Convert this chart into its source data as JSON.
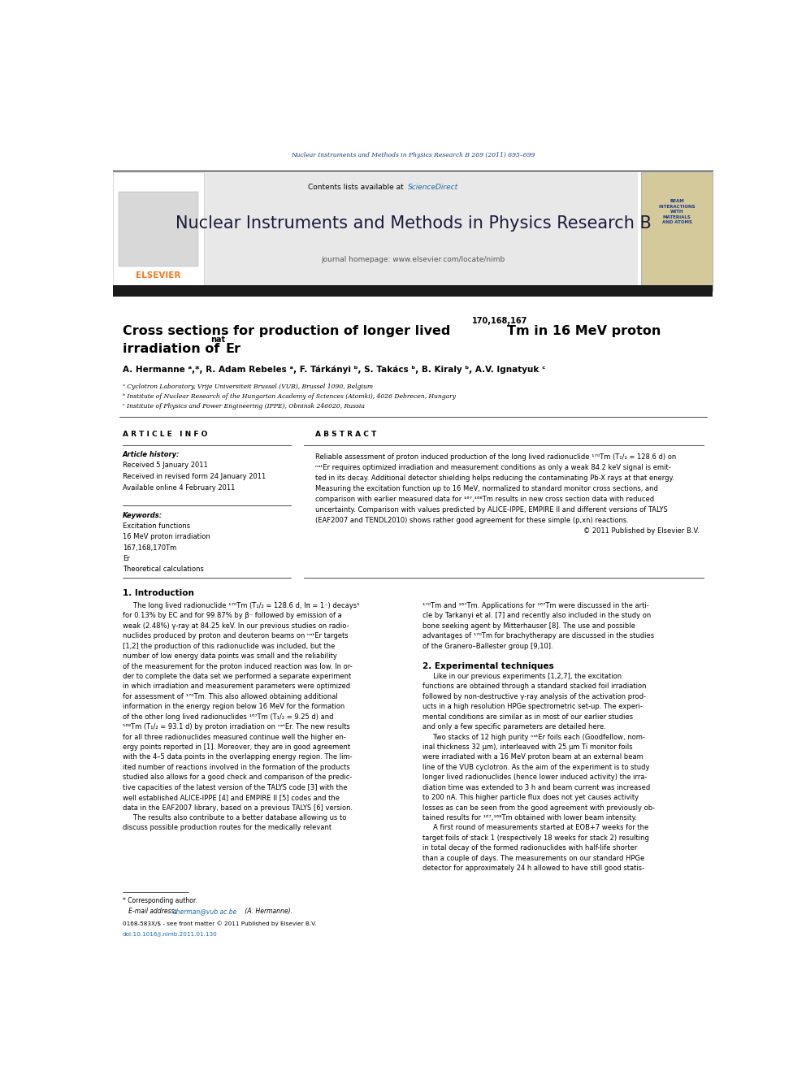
{
  "page_width": 9.92,
  "page_height": 13.23,
  "bg_color": "#ffffff",
  "journal_line_color": "#1a3a8a",
  "journal_ref": "Nuclear Instruments and Methods in Physics Research B 269 (2011) 695–699",
  "header_bg": "#e8e8e8",
  "header_title": "Nuclear Instruments and Methods in Physics Research B",
  "header_subtitle": "journal homepage: www.elsevier.com/locate/nimb",
  "elsevier_color": "#f47920",
  "thick_bar_color": "#1a1a1a",
  "affil_a": "ᵃ Cyclotron Laboratory, Vrije Universiteit Brussel (VUB), Brussel 1090, Belgium",
  "affil_b": "ᵇ Institute of Nuclear Research of the Hungarian Academy of Sciences (Atomki), 4026 Debrecen, Hungary",
  "affil_c": "ᶜ Institute of Physics and Power Engineering (IPPE), Obninsk 246020, Russia",
  "received1": "Received 5 January 2011",
  "received2": "Received in revised form 24 January 2011",
  "available": "Available online 4 February 2011",
  "kw1": "Excitation functions",
  "kw2": "16 MeV proton irradiation",
  "kw3": "167,168,170Tm",
  "kw4": "Er",
  "kw5": "Theoretical calculations",
  "footer_line1": "0168-583X/$ - see front matter © 2011 Published by Elsevier B.V.",
  "footer_line2": "doi:10.1016/j.nimb.2011.01.130"
}
